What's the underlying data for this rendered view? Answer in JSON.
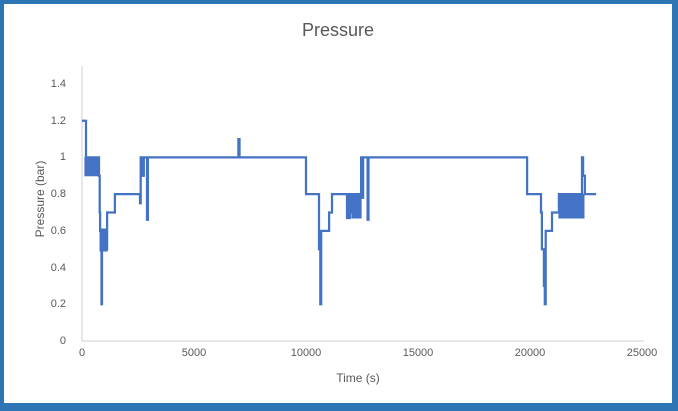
{
  "window": {
    "type": "embedded-chart-screenshot",
    "frame_border_color": "#2E75B6",
    "background_color": "#FFFFFF"
  },
  "chart_data": {
    "type": "line",
    "title": "Pressure",
    "xlabel": "Time (s)",
    "ylabel": "Pressure (bar)",
    "xlim": [
      0,
      25000
    ],
    "ylim": [
      0,
      1.4
    ],
    "xticks": [
      "0",
      "5000",
      "10000",
      "15000",
      "20000",
      "25000"
    ],
    "yticks": [
      "0",
      "0.2",
      "0.4",
      "0.6",
      "0.8",
      "1",
      "1.2",
      "1.4"
    ],
    "grid": false,
    "legend": false,
    "line_color": "#4472C4",
    "axis_color": "#D9D9D9",
    "text_color": "#595959",
    "series": [
      {
        "name": "Pressure",
        "units": "bar",
        "points": [
          [
            0,
            1.2
          ],
          [
            180,
            1.2
          ],
          [
            180,
            1.0
          ],
          [
            760,
            1.0
          ],
          [
            760,
            0.9
          ],
          [
            790,
            0.9
          ],
          [
            790,
            0.7
          ],
          [
            810,
            0.7
          ],
          [
            810,
            0.6
          ],
          [
            850,
            0.6
          ],
          [
            850,
            0.5
          ],
          [
            870,
            0.5
          ],
          [
            870,
            0.2
          ],
          [
            895,
            0.2
          ],
          [
            895,
            0.5
          ],
          [
            1120,
            0.5
          ],
          [
            1120,
            0.7
          ],
          [
            1470,
            0.7
          ],
          [
            1470,
            0.8
          ],
          [
            2590,
            0.8
          ],
          [
            2590,
            0.75
          ],
          [
            2620,
            0.75
          ],
          [
            2620,
            1.0
          ],
          [
            2680,
            1.0
          ],
          [
            2680,
            0.9
          ],
          [
            2760,
            0.9
          ],
          [
            2760,
            1.0
          ],
          [
            2900,
            1.0
          ],
          [
            2900,
            0.66
          ],
          [
            2940,
            0.66
          ],
          [
            2940,
            1.0
          ],
          [
            6980,
            1.0
          ],
          [
            6980,
            1.1
          ],
          [
            7030,
            1.1
          ],
          [
            7030,
            1.0
          ],
          [
            10000,
            1.0
          ],
          [
            10000,
            0.8
          ],
          [
            10580,
            0.8
          ],
          [
            10580,
            0.5
          ],
          [
            10640,
            0.5
          ],
          [
            10640,
            0.2
          ],
          [
            10680,
            0.2
          ],
          [
            10680,
            0.6
          ],
          [
            11030,
            0.6
          ],
          [
            11030,
            0.7
          ],
          [
            11160,
            0.7
          ],
          [
            11160,
            0.8
          ],
          [
            11830,
            0.8
          ],
          [
            11830,
            0.67
          ],
          [
            11870,
            0.67
          ],
          [
            11870,
            0.8
          ],
          [
            11920,
            0.8
          ],
          [
            11920,
            0.67
          ],
          [
            11960,
            0.67
          ],
          [
            11960,
            0.8
          ],
          [
            12050,
            0.8
          ],
          [
            12050,
            0.7
          ],
          [
            12100,
            0.7
          ],
          [
            12100,
            0.8
          ],
          [
            12460,
            0.8
          ],
          [
            12460,
            1.0
          ],
          [
            12490,
            1.0
          ],
          [
            12490,
            0.78
          ],
          [
            12550,
            0.78
          ],
          [
            12550,
            1.0
          ],
          [
            12750,
            1.0
          ],
          [
            12750,
            0.66
          ],
          [
            12790,
            0.66
          ],
          [
            12790,
            1.0
          ],
          [
            19870,
            1.0
          ],
          [
            19870,
            0.8
          ],
          [
            20490,
            0.8
          ],
          [
            20490,
            0.7
          ],
          [
            20530,
            0.7
          ],
          [
            20530,
            0.5
          ],
          [
            20620,
            0.5
          ],
          [
            20620,
            0.3
          ],
          [
            20660,
            0.3
          ],
          [
            20660,
            0.2
          ],
          [
            20700,
            0.2
          ],
          [
            20700,
            0.6
          ],
          [
            20980,
            0.6
          ],
          [
            20980,
            0.7
          ],
          [
            21290,
            0.7
          ],
          [
            21290,
            0.8
          ],
          [
            22320,
            0.8
          ],
          [
            22320,
            1.0
          ],
          [
            22370,
            1.0
          ],
          [
            22370,
            0.9
          ],
          [
            22450,
            0.9
          ],
          [
            22450,
            0.8
          ],
          [
            22950,
            0.8
          ]
        ]
      }
    ],
    "oscillation_bands": [
      {
        "t_start": 130,
        "t_end": 760,
        "p_low": 0.9,
        "p_high": 1.0
      },
      {
        "t_start": 805,
        "t_end": 1120,
        "p_low": 0.49,
        "p_high": 0.61
      },
      {
        "t_start": 11830,
        "t_end": 11960,
        "p_low": 0.67,
        "p_high": 0.8
      },
      {
        "t_start": 12050,
        "t_end": 12460,
        "p_low": 0.67,
        "p_high": 0.8
      },
      {
        "t_start": 21290,
        "t_end": 22410,
        "p_low": 0.67,
        "p_high": 0.8
      }
    ]
  }
}
